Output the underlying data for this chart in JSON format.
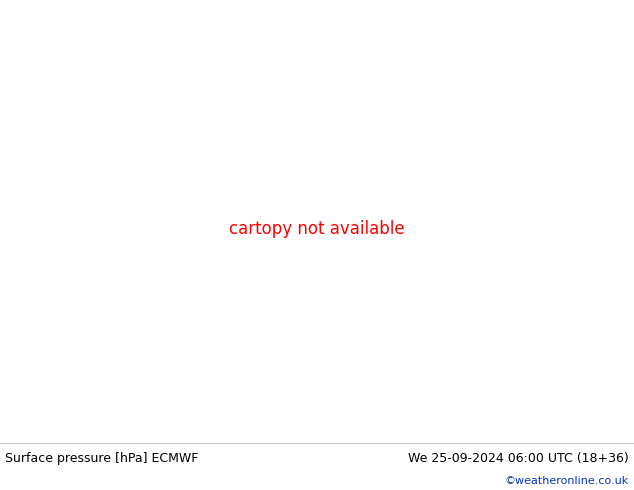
{
  "title": "Surface pressure [hPa] ECMWF",
  "date_str": "We 25-09-2024 06:00 UTC (18+36)",
  "credit": "©weatheronline.co.uk",
  "bg_land": "#b2e57a",
  "bg_sea": "#d2d2d2",
  "contour_color_black": "#000000",
  "contour_color_red": "#ff0000",
  "contour_color_blue": "#0055ff",
  "border_color": "#888888",
  "fig_width": 6.34,
  "fig_height": 4.9,
  "dpi": 100,
  "title_fontsize": 9,
  "date_fontsize": 9,
  "credit_fontsize": 8,
  "map_extent": [
    -10,
    42,
    27,
    52
  ],
  "label_fontsize_black": 8,
  "label_fontsize_red": 7,
  "label_fontsize_blue": 8
}
